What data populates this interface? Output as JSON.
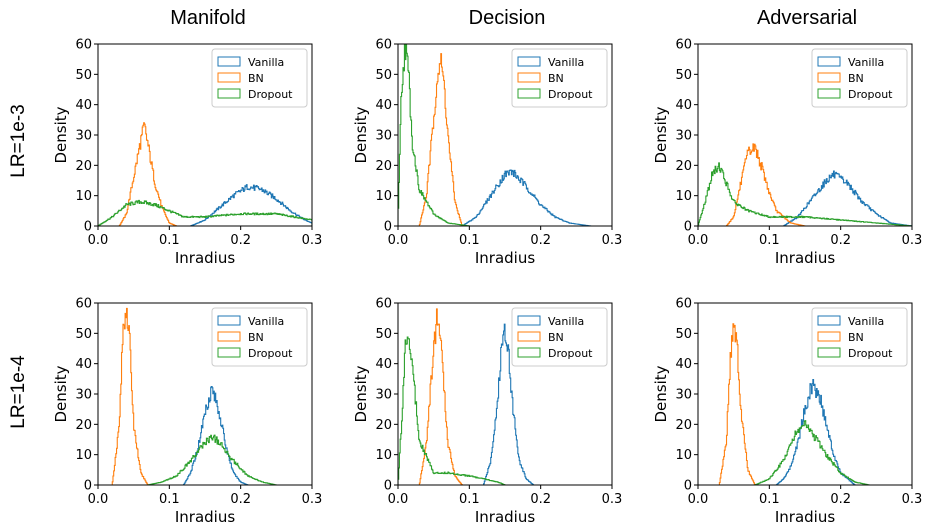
{
  "column_titles": [
    "Manifold",
    "Decision",
    "Adversarial"
  ],
  "row_labels": [
    "LR=1e-3",
    "LR=1e-4"
  ],
  "colors": {
    "Vanilla": "#1f77b4",
    "BN": "#ff7f0e",
    "Dropout": "#2ca02c"
  },
  "chart_data": [
    {
      "type": "area",
      "row": 0,
      "col": 0,
      "xlabel": "Inradius",
      "ylabel": "Density",
      "xlim": [
        0.0,
        0.3
      ],
      "ylim": [
        0,
        60
      ],
      "xticks": [
        "0.0",
        "0.1",
        "0.2",
        "0.3"
      ],
      "yticks": [
        "0",
        "10",
        "20",
        "30",
        "40",
        "50",
        "60"
      ],
      "legend": "top-right",
      "grid": false,
      "series": [
        {
          "name": "Vanilla",
          "x": [
            0.13,
            0.15,
            0.17,
            0.19,
            0.21,
            0.23,
            0.25,
            0.27,
            0.29,
            0.3
          ],
          "values": [
            0,
            2,
            6,
            10,
            13,
            12,
            9,
            5,
            2,
            1
          ]
        },
        {
          "name": "BN",
          "x": [
            0.03,
            0.04,
            0.05,
            0.06,
            0.065,
            0.07,
            0.08,
            0.09,
            0.1,
            0.11
          ],
          "values": [
            0,
            4,
            16,
            28,
            33,
            27,
            14,
            6,
            1,
            0
          ]
        },
        {
          "name": "Dropout",
          "x": [
            0.0,
            0.02,
            0.04,
            0.06,
            0.08,
            0.1,
            0.12,
            0.15,
            0.2,
            0.25,
            0.3
          ],
          "values": [
            0,
            3,
            7,
            8,
            7,
            5,
            3,
            3,
            4,
            4,
            2
          ]
        }
      ]
    },
    {
      "type": "area",
      "row": 0,
      "col": 1,
      "xlabel": "Inradius",
      "ylabel": "Density",
      "xlim": [
        0.0,
        0.3
      ],
      "ylim": [
        0,
        60
      ],
      "xticks": [
        "0.0",
        "0.1",
        "0.2",
        "0.3"
      ],
      "yticks": [
        "0",
        "10",
        "20",
        "30",
        "40",
        "50",
        "60"
      ],
      "legend": "top-right",
      "grid": false,
      "series": [
        {
          "name": "Vanilla",
          "x": [
            0.09,
            0.11,
            0.13,
            0.15,
            0.16,
            0.18,
            0.2,
            0.22,
            0.24,
            0.27
          ],
          "values": [
            0,
            3,
            10,
            17,
            18,
            13,
            7,
            3,
            1,
            0
          ]
        },
        {
          "name": "BN",
          "x": [
            0.03,
            0.04,
            0.05,
            0.055,
            0.06,
            0.065,
            0.07,
            0.08,
            0.09
          ],
          "values": [
            0,
            10,
            35,
            50,
            54,
            46,
            30,
            8,
            0
          ]
        },
        {
          "name": "Dropout",
          "x": [
            0.0,
            0.005,
            0.01,
            0.015,
            0.02,
            0.03,
            0.05,
            0.07,
            0.1
          ],
          "values": [
            2,
            45,
            60,
            50,
            28,
            12,
            4,
            1,
            0
          ]
        }
      ]
    },
    {
      "type": "area",
      "row": 0,
      "col": 2,
      "xlabel": "Inradius",
      "ylabel": "Density",
      "xlim": [
        0.0,
        0.3
      ],
      "ylim": [
        0,
        60
      ],
      "xticks": [
        "0.0",
        "0.1",
        "0.2",
        "0.3"
      ],
      "yticks": [
        "0",
        "10",
        "20",
        "30",
        "40",
        "50",
        "60"
      ],
      "legend": "top-right",
      "grid": false,
      "series": [
        {
          "name": "Vanilla",
          "x": [
            0.12,
            0.14,
            0.16,
            0.18,
            0.19,
            0.21,
            0.23,
            0.25,
            0.27,
            0.3
          ],
          "values": [
            0,
            3,
            9,
            15,
            17,
            14,
            8,
            4,
            1,
            0
          ]
        },
        {
          "name": "BN",
          "x": [
            0.04,
            0.05,
            0.06,
            0.07,
            0.08,
            0.09,
            0.1,
            0.11,
            0.13,
            0.15
          ],
          "values": [
            0,
            3,
            14,
            24,
            26,
            19,
            11,
            5,
            1,
            0
          ]
        },
        {
          "name": "Dropout",
          "x": [
            0.0,
            0.01,
            0.02,
            0.03,
            0.04,
            0.05,
            0.07,
            0.1,
            0.15,
            0.2,
            0.25,
            0.3
          ],
          "values": [
            0,
            8,
            17,
            20,
            14,
            8,
            5,
            3,
            3,
            2,
            1,
            0
          ]
        }
      ]
    },
    {
      "type": "area",
      "row": 1,
      "col": 0,
      "xlabel": "Inradius",
      "ylabel": "Density",
      "xlim": [
        0.0,
        0.3
      ],
      "ylim": [
        0,
        60
      ],
      "xticks": [
        "0.0",
        "0.1",
        "0.2",
        "0.3"
      ],
      "yticks": [
        "0",
        "10",
        "20",
        "30",
        "40",
        "50",
        "60"
      ],
      "legend": "top-right",
      "grid": false,
      "series": [
        {
          "name": "Vanilla",
          "x": [
            0.12,
            0.13,
            0.14,
            0.15,
            0.16,
            0.17,
            0.18,
            0.19,
            0.2,
            0.21
          ],
          "values": [
            0,
            4,
            12,
            24,
            32,
            24,
            12,
            4,
            1,
            0
          ]
        },
        {
          "name": "BN",
          "x": [
            0.02,
            0.03,
            0.035,
            0.04,
            0.045,
            0.05,
            0.06,
            0.07
          ],
          "values": [
            0,
            20,
            50,
            60,
            45,
            20,
            4,
            0
          ]
        },
        {
          "name": "Dropout",
          "x": [
            0.07,
            0.09,
            0.11,
            0.13,
            0.15,
            0.16,
            0.17,
            0.19,
            0.21,
            0.23,
            0.25
          ],
          "values": [
            0,
            1,
            3,
            8,
            14,
            16,
            14,
            8,
            3,
            1,
            0
          ]
        }
      ]
    },
    {
      "type": "area",
      "row": 1,
      "col": 1,
      "xlabel": "Inradius",
      "ylabel": "Density",
      "xlim": [
        0.0,
        0.3
      ],
      "ylim": [
        0,
        60
      ],
      "xticks": [
        "0.0",
        "0.1",
        "0.2",
        "0.3"
      ],
      "yticks": [
        "0",
        "10",
        "20",
        "30",
        "40",
        "50",
        "60"
      ],
      "legend": "top-right",
      "grid": false,
      "series": [
        {
          "name": "Vanilla",
          "x": [
            0.12,
            0.13,
            0.14,
            0.145,
            0.15,
            0.155,
            0.16,
            0.17,
            0.18,
            0.19
          ],
          "values": [
            0,
            8,
            28,
            45,
            52,
            45,
            28,
            8,
            2,
            0
          ]
        },
        {
          "name": "BN",
          "x": [
            0.03,
            0.04,
            0.05,
            0.055,
            0.06,
            0.065,
            0.07,
            0.08,
            0.09
          ],
          "values": [
            0,
            14,
            45,
            56,
            48,
            30,
            14,
            3,
            0
          ]
        },
        {
          "name": "Dropout",
          "x": [
            0.0,
            0.005,
            0.01,
            0.015,
            0.02,
            0.03,
            0.05,
            0.07,
            0.1,
            0.12,
            0.14,
            0.15
          ],
          "values": [
            0,
            20,
            45,
            51,
            40,
            15,
            4,
            4,
            3,
            2,
            1,
            0
          ]
        }
      ]
    },
    {
      "type": "area",
      "row": 1,
      "col": 2,
      "xlabel": "Inradius",
      "ylabel": "Density",
      "xlim": [
        0.0,
        0.3
      ],
      "ylim": [
        0,
        60
      ],
      "xticks": [
        "0.0",
        "0.1",
        "0.2",
        "0.3"
      ],
      "yticks": [
        "0",
        "10",
        "20",
        "30",
        "40",
        "50",
        "60"
      ],
      "legend": "top-right",
      "grid": false,
      "series": [
        {
          "name": "Vanilla",
          "x": [
            0.11,
            0.12,
            0.13,
            0.14,
            0.15,
            0.16,
            0.17,
            0.18,
            0.19,
            0.2,
            0.22
          ],
          "values": [
            0,
            2,
            6,
            14,
            25,
            33,
            30,
            20,
            10,
            4,
            0
          ]
        },
        {
          "name": "BN",
          "x": [
            0.03,
            0.04,
            0.045,
            0.05,
            0.055,
            0.06,
            0.07,
            0.08
          ],
          "values": [
            0,
            15,
            40,
            54,
            45,
            25,
            5,
            0
          ]
        },
        {
          "name": "Dropout",
          "x": [
            0.08,
            0.1,
            0.12,
            0.13,
            0.14,
            0.15,
            0.16,
            0.18,
            0.2,
            0.22,
            0.24
          ],
          "values": [
            0,
            2,
            8,
            14,
            18,
            20,
            17,
            10,
            4,
            1,
            0
          ]
        }
      ]
    }
  ]
}
